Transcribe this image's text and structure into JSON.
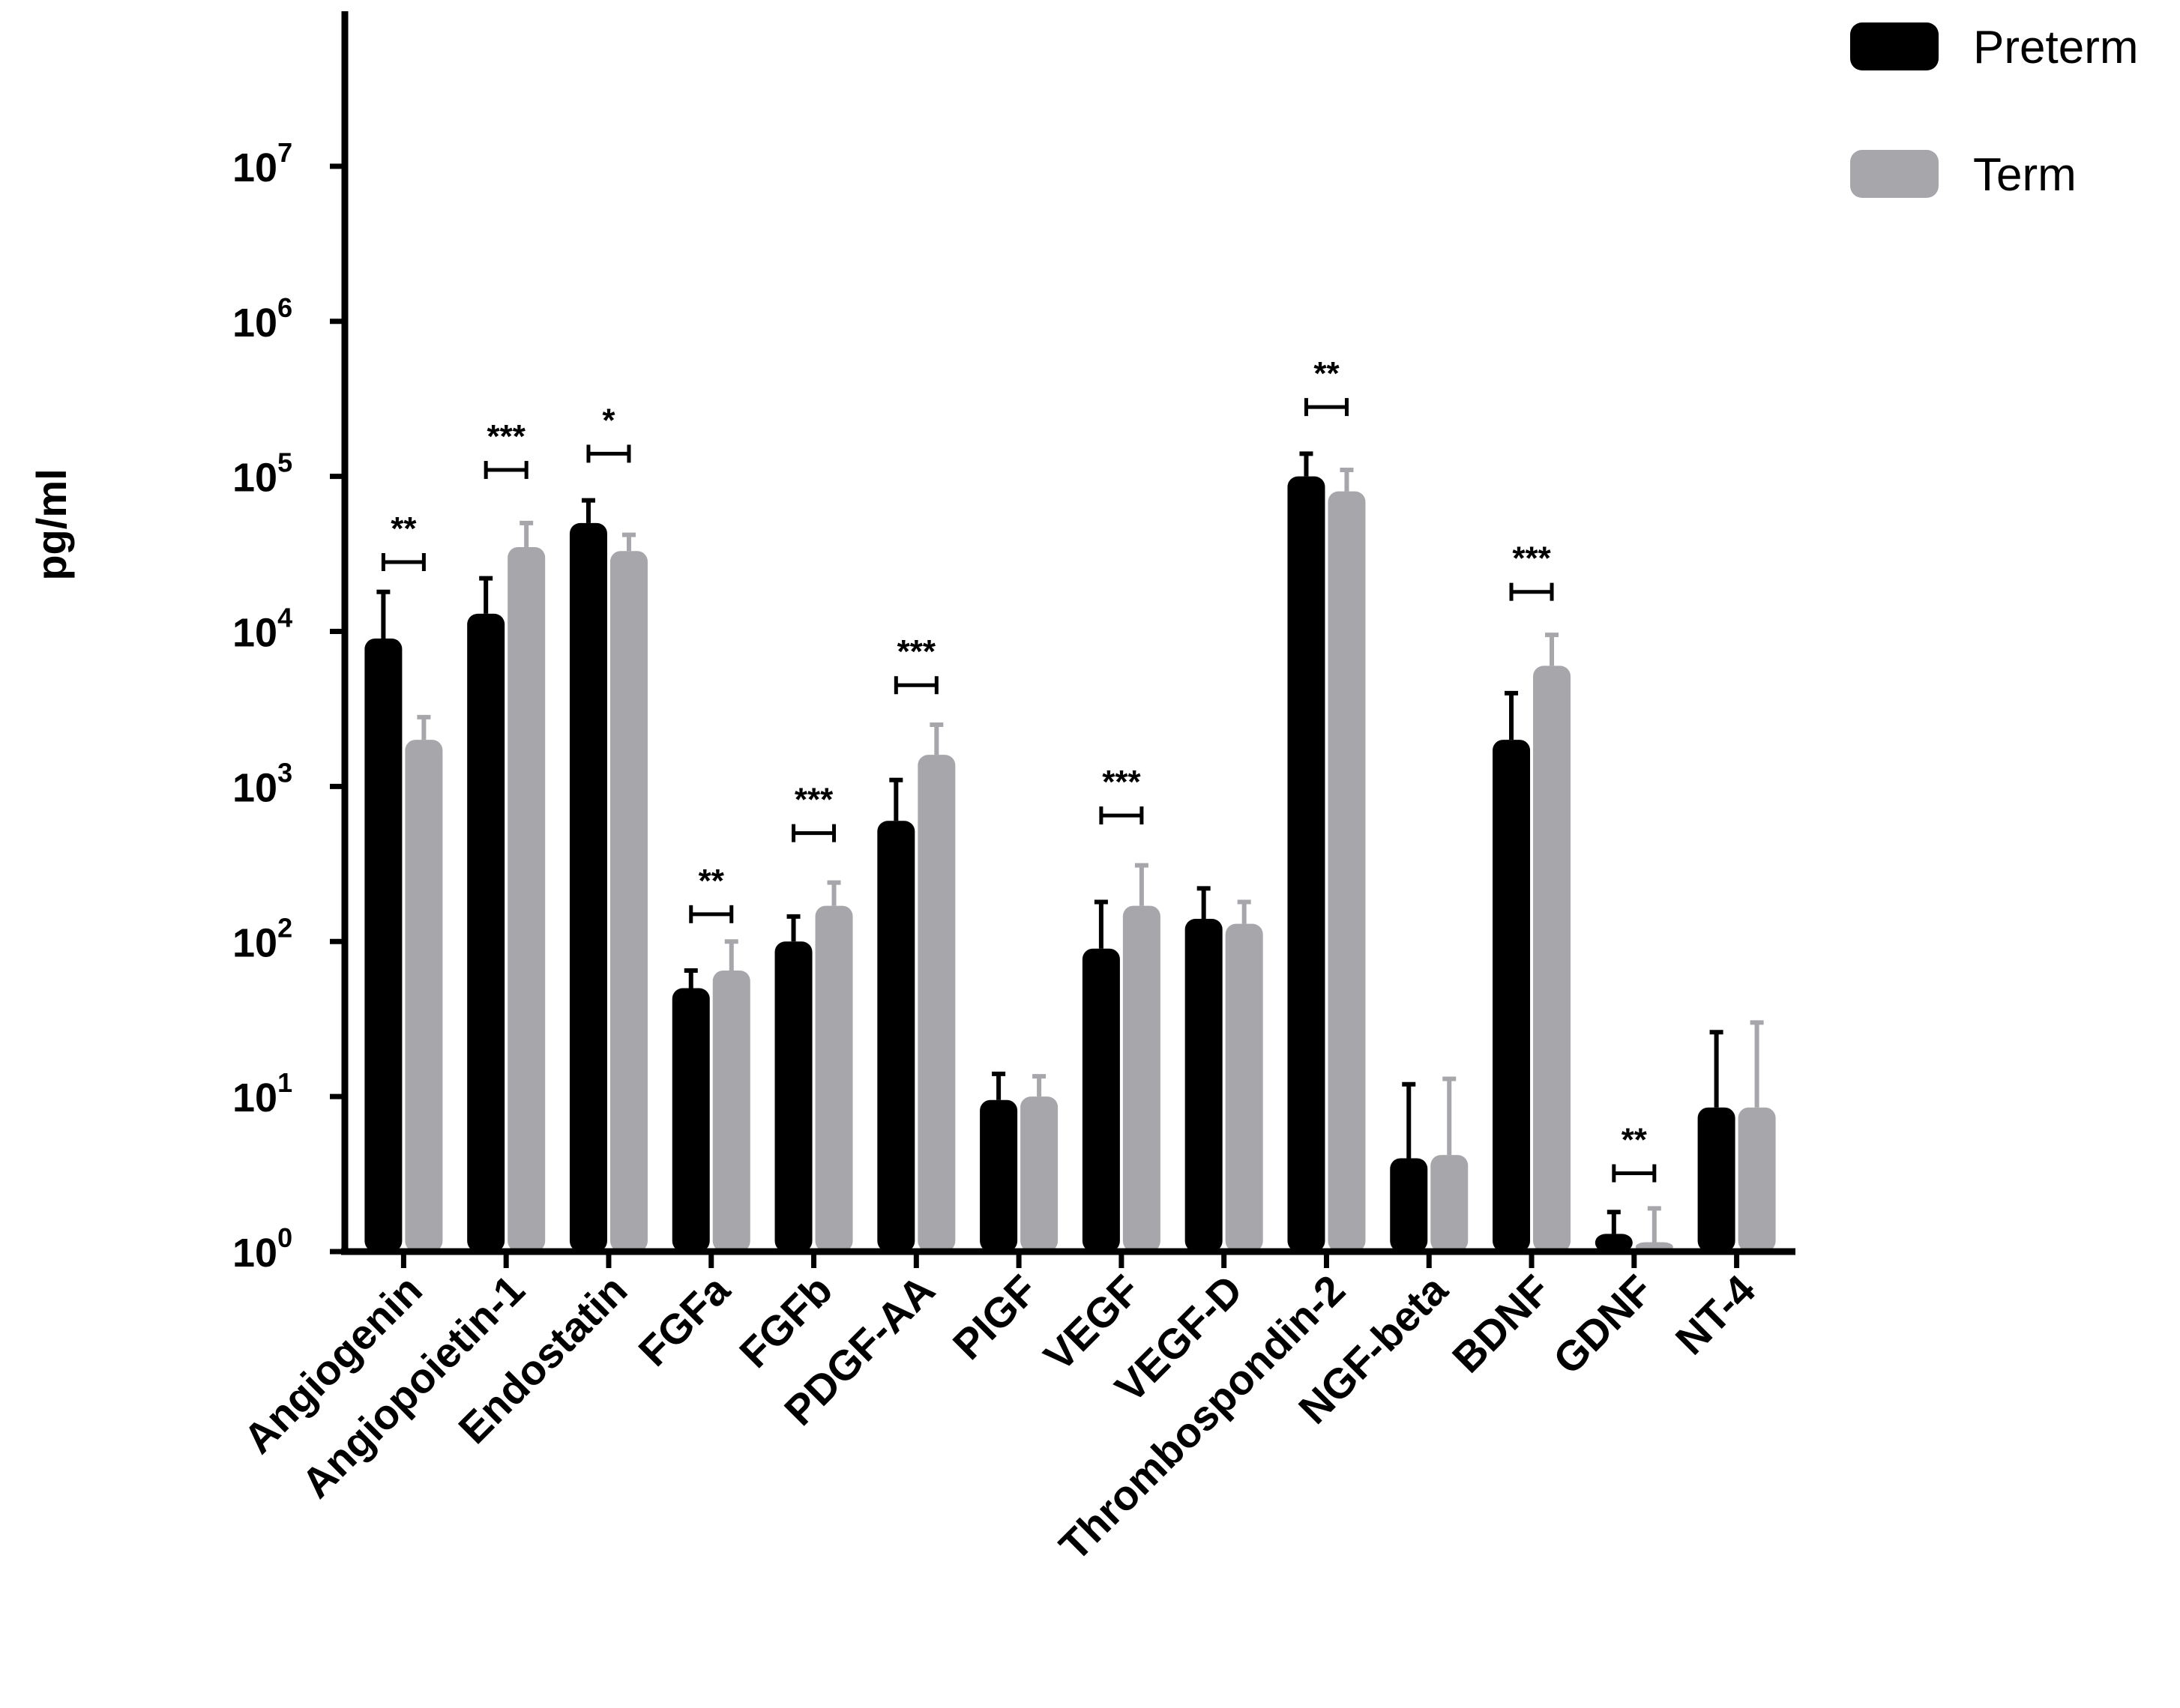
{
  "chart_data": {
    "type": "bar",
    "title": "",
    "xlabel": "",
    "ylabel": "pg/ml",
    "yscale": "log",
    "ylim": [
      1,
      100000000
    ],
    "ytick_base": "10",
    "yticks": [
      {
        "value": 1,
        "exp": "0"
      },
      {
        "value": 10,
        "exp": "1"
      },
      {
        "value": 100,
        "exp": "2"
      },
      {
        "value": 1000,
        "exp": "3"
      },
      {
        "value": 10000,
        "exp": "4"
      },
      {
        "value": 100000,
        "exp": "5"
      },
      {
        "value": 1000000,
        "exp": "6"
      },
      {
        "value": 10000000,
        "exp": "7"
      }
    ],
    "categories": [
      "Angiogenin",
      "Angiopoietin-1",
      "Endostatin",
      "FGFa",
      "FGFb",
      "PDGF-AA",
      "PIGF",
      "VEGF",
      "VEGF-D",
      "Thrombospondin-2",
      "NGF-beta",
      "BDNF",
      "GDNF",
      "NT-4"
    ],
    "series": [
      {
        "name": "Preterm",
        "color": "#000000",
        "values": [
          9000,
          13000,
          50000,
          50,
          100,
          600,
          9.5,
          90,
          140,
          100000,
          4,
          2000,
          1.3,
          8.5
        ],
        "errors": [
          18000,
          22000,
          70000,
          65,
          145,
          1100,
          14,
          180,
          220,
          140000,
          12,
          4000,
          1.8,
          26
        ]
      },
      {
        "name": "Term",
        "color": "#a7a7ab",
        "values": [
          2000,
          35000,
          33000,
          65,
          170,
          1600,
          10,
          170,
          130,
          80000,
          4.2,
          6000,
          1.15,
          8.5
        ],
        "errors": [
          2800,
          50000,
          42000,
          100,
          240,
          2500,
          13.5,
          310,
          180,
          110000,
          13,
          9500,
          1.9,
          30
        ]
      }
    ],
    "significance": [
      {
        "category": "Angiogenin",
        "label": "**",
        "level": 28000
      },
      {
        "category": "Angiopoietin-1",
        "label": "***",
        "level": 110000
      },
      {
        "category": "Endostatin",
        "label": "*",
        "level": 140000
      },
      {
        "category": "FGFa",
        "label": "**",
        "level": 150
      },
      {
        "category": "FGFb",
        "label": "***",
        "level": 500
      },
      {
        "category": "PDGF-AA",
        "label": "***",
        "level": 4500
      },
      {
        "category": "VEGF",
        "label": "***",
        "level": 650
      },
      {
        "category": "Thrombospondin-2",
        "label": "**",
        "level": 280000
      },
      {
        "category": "BDNF",
        "label": "***",
        "level": 18000
      },
      {
        "category": "GDNF",
        "label": "**",
        "level": 3.2
      }
    ],
    "legend": {
      "position": "top-right",
      "entries": [
        "Preterm",
        "Term"
      ]
    }
  }
}
